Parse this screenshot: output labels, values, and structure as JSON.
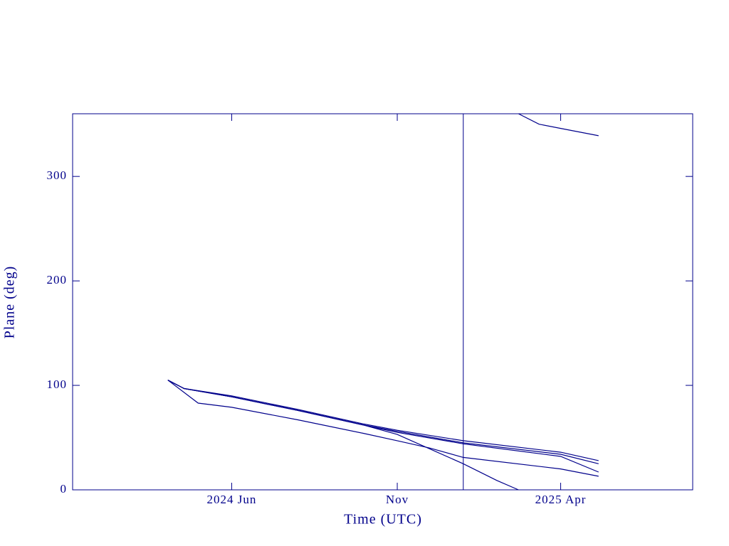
{
  "chart_data": {
    "type": "line",
    "xlabel": "Time (UTC)",
    "ylabel": "Plane (deg)",
    "xlim": [
      "2024-01-06",
      "2025-08-01"
    ],
    "ylim": [
      0,
      360
    ],
    "xticks": [
      {
        "value": "2024-06-01",
        "label": "2024 Jun"
      },
      {
        "value": "2024-11-01",
        "label": "Nov"
      },
      {
        "value": "2025-04-01",
        "label": "2025 Apr"
      }
    ],
    "yticks": [
      0,
      100,
      200,
      300
    ],
    "vline": "2025-01-01",
    "series": [
      {
        "color": "#00008b",
        "x": [
          "2024-04-03",
          "2024-04-18",
          "2024-06-01",
          "2024-08-01",
          "2024-10-01",
          "2024-11-01",
          "2025-01-01",
          "2025-04-01",
          "2025-05-06"
        ],
        "values": [
          105,
          97,
          90,
          77,
          63,
          57,
          47,
          36,
          28
        ]
      },
      {
        "color": "#00008b",
        "x": [
          "2024-04-03",
          "2024-04-18",
          "2024-06-01",
          "2024-08-01",
          "2024-10-01",
          "2024-11-01",
          "2025-01-01",
          "2025-04-01",
          "2025-05-06"
        ],
        "values": [
          105,
          97,
          89,
          76,
          62,
          56,
          45,
          34,
          25
        ]
      },
      {
        "color": "#00008b",
        "x": [
          "2024-04-03",
          "2024-04-18",
          "2024-06-01",
          "2024-08-01",
          "2024-10-01",
          "2024-11-01",
          "2025-01-01",
          "2025-04-01",
          "2025-05-06"
        ],
        "values": [
          105,
          97,
          89,
          76,
          62,
          55,
          44,
          32,
          17
        ]
      },
      {
        "color": "#00008b",
        "x": [
          "2024-04-03",
          "2024-05-01",
          "2024-06-01",
          "2024-08-01",
          "2024-10-01",
          "2024-11-01",
          "2024-12-01",
          "2025-01-01",
          "2025-04-01",
          "2025-05-06"
        ],
        "values": [
          105,
          83,
          79,
          67,
          54,
          47,
          40,
          31,
          20,
          13
        ]
      },
      {
        "color": "#00008b",
        "x": [
          "2024-04-03",
          "2024-04-18",
          "2024-06-01",
          "2024-08-01",
          "2024-10-01",
          "2024-11-01",
          "2025-01-01",
          "2025-02-01",
          "2025-02-21",
          "2025-02-21",
          "2025-02-21",
          "2025-03-12",
          "2025-04-01",
          "2025-05-06"
        ],
        "values": [
          105,
          97,
          89,
          76,
          62,
          53,
          25,
          9,
          0,
          null,
          360,
          350,
          346,
          339
        ]
      }
    ]
  }
}
